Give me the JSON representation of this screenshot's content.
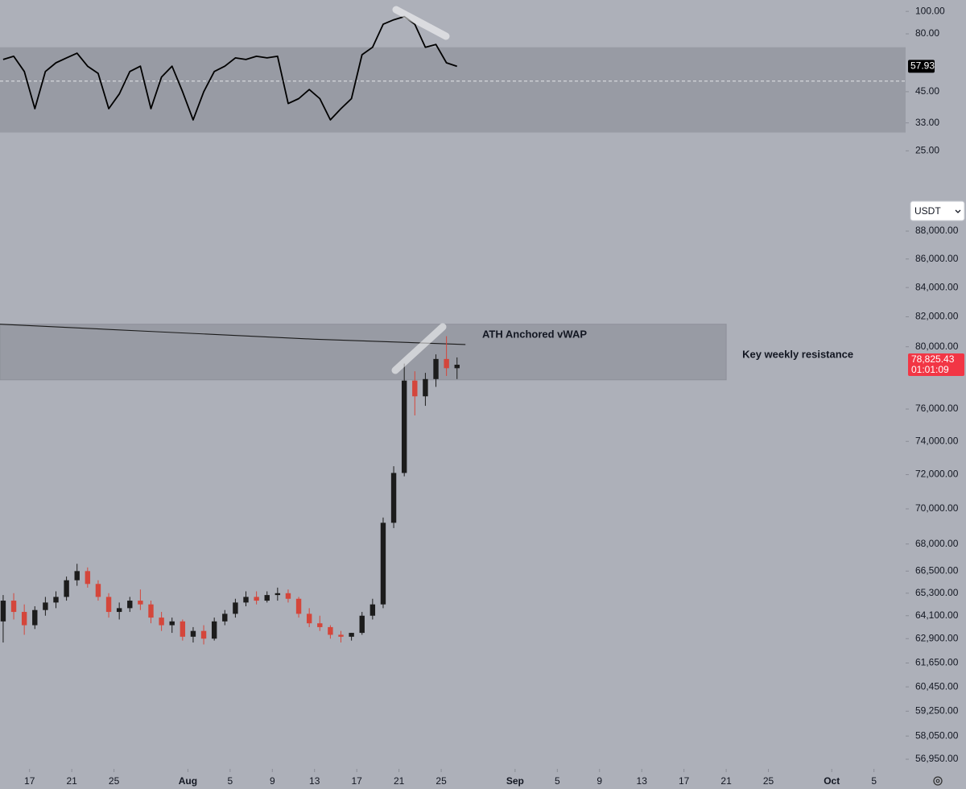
{
  "chart_data": [
    {
      "type": "line",
      "x": [
        195.5,
        196.5,
        197.5,
        198.5,
        199.5,
        200.5,
        201.5,
        202.5,
        203.5,
        204.5,
        205.5,
        206.5,
        207.5,
        208.5,
        209.5,
        210.5,
        211.5,
        212.5,
        213.5,
        214.5,
        215.5,
        216.5,
        217.5,
        218.5,
        219.5,
        220.5,
        221.5,
        222.5,
        223.5,
        224.5,
        225.5,
        226.5,
        227.5,
        228.5,
        229.5,
        230.5,
        231.5,
        232.5,
        233.5,
        234.5,
        235.5,
        236.5,
        237.5,
        238.5
      ],
      "series": [
        {
          "color": "#000000",
          "values": [
            62,
            64,
            55,
            38,
            55,
            60,
            63,
            66,
            58,
            54,
            38,
            44,
            55,
            58,
            38,
            52,
            58,
            45,
            34,
            45,
            55,
            58,
            63,
            62,
            64,
            63,
            64,
            40,
            42,
            46,
            42,
            34,
            38,
            42,
            65,
            70,
            88,
            92,
            95,
            88,
            70,
            72,
            60,
            57.93
          ]
        }
      ],
      "xlim": [
        195.2,
        281.0
      ],
      "ylim": [
        16.4,
        112
      ],
      "log_scale": true,
      "yticks": [
        {
          "value": 100,
          "label": "100.00"
        },
        {
          "value": 80,
          "label": "80.00"
        },
        {
          "value": 45,
          "label": "45.00"
        },
        {
          "value": 33,
          "label": "33.00"
        },
        {
          "value": 25,
          "label": "25.00"
        }
      ],
      "band": [
        30,
        70
      ],
      "band_color": "#989ba4",
      "midline": 50
    },
    {
      "type": "candlestick",
      "x": [
        195.5,
        196.5,
        197.5,
        198.5,
        199.5,
        200.5,
        201.5,
        202.5,
        203.5,
        204.5,
        205.5,
        206.5,
        207.5,
        208.5,
        209.5,
        210.5,
        211.5,
        212.5,
        213.5,
        214.5,
        215.5,
        216.5,
        217.5,
        218.5,
        219.5,
        220.5,
        221.5,
        222.5,
        223.5,
        224.5,
        225.5,
        226.5,
        227.5,
        228.5,
        229.5,
        230.5,
        231.5,
        232.5,
        233.5,
        234.5,
        235.5,
        236.5,
        237.5,
        238.5
      ],
      "open": [
        63800,
        64900,
        64300,
        63600,
        64400,
        64800,
        65100,
        66000,
        66500,
        65800,
        65100,
        64300,
        64500,
        64900,
        64700,
        64000,
        63600,
        63800,
        63000,
        63300,
        62900,
        63800,
        64200,
        64800,
        65100,
        64900,
        65200,
        65300,
        65000,
        64200,
        63700,
        63500,
        63100,
        63000,
        63200,
        64100,
        64700,
        69200,
        72100,
        77800,
        76800,
        77900,
        79200,
        78600
      ],
      "high": [
        65200,
        65300,
        64700,
        64600,
        65100,
        65400,
        66200,
        66900,
        66700,
        66000,
        65300,
        64800,
        65100,
        65500,
        64900,
        64300,
        64000,
        63900,
        63500,
        63600,
        64000,
        64400,
        65000,
        65400,
        65400,
        65400,
        65600,
        65500,
        65100,
        64500,
        64100,
        63600,
        63300,
        63200,
        64300,
        65000,
        69500,
        72500,
        78900,
        78400,
        78300,
        79500,
        80700,
        79300
      ],
      "low": [
        62700,
        63900,
        63100,
        63400,
        64100,
        64500,
        64900,
        65700,
        65600,
        64900,
        64000,
        63900,
        64300,
        64400,
        63700,
        63300,
        63200,
        62800,
        62700,
        62600,
        62800,
        63600,
        64000,
        64600,
        64700,
        64800,
        64900,
        64800,
        64000,
        63500,
        63300,
        62900,
        62700,
        62800,
        63100,
        63900,
        64500,
        68900,
        71900,
        75600,
        76200,
        77400,
        78100,
        77900
      ],
      "close": [
        64900,
        64300,
        63600,
        64400,
        64800,
        65100,
        66000,
        66500,
        65800,
        65100,
        64300,
        64500,
        64900,
        64700,
        64000,
        63600,
        63800,
        63000,
        63300,
        62900,
        63800,
        64200,
        64800,
        65100,
        64900,
        65200,
        65300,
        65000,
        64200,
        63700,
        63500,
        63100,
        63000,
        63200,
        64100,
        64700,
        69200,
        72100,
        77800,
        76800,
        77900,
        79200,
        78600,
        78825.43
      ],
      "up_color": "#1c1c1c",
      "down_color": "#d4463b",
      "xlim": [
        195.2,
        281.0
      ],
      "ylim": [
        56500,
        89000
      ],
      "log_scale": true,
      "yticks": [
        {
          "value": 88000,
          "label": "88,000.00"
        },
        {
          "value": 86000,
          "label": "86,000.00"
        },
        {
          "value": 84000,
          "label": "84,000.00"
        },
        {
          "value": 82000,
          "label": "82,000.00"
        },
        {
          "value": 80000,
          "label": "80,000.00"
        },
        {
          "value": 76000,
          "label": "76,000.00"
        },
        {
          "value": 74000,
          "label": "74,000.00"
        },
        {
          "value": 72000,
          "label": "72,000.00"
        },
        {
          "value": 70000,
          "label": "70,000.00"
        },
        {
          "value": 68000,
          "label": "68,000.00"
        },
        {
          "value": 66500,
          "label": "66,500.00"
        },
        {
          "value": 65300,
          "label": "65,300.00"
        },
        {
          "value": 64100,
          "label": "64,100.00"
        },
        {
          "value": 62900,
          "label": "62,900.00"
        },
        {
          "value": 61650,
          "label": "61,650.00"
        },
        {
          "value": 60450,
          "label": "60,450.00"
        },
        {
          "value": 59250,
          "label": "59,250.00"
        },
        {
          "value": 58050,
          "label": "58,050.00"
        },
        {
          "value": 56950,
          "label": "56,950.00"
        }
      ],
      "xticks": [
        {
          "value": 198,
          "label": "17"
        },
        {
          "value": 202,
          "label": "21"
        },
        {
          "value": 206,
          "label": "25"
        },
        {
          "value": 213,
          "label": "Aug"
        },
        {
          "value": 217,
          "label": "5"
        },
        {
          "value": 221,
          "label": "9"
        },
        {
          "value": 225,
          "label": "13"
        },
        {
          "value": 229,
          "label": "17"
        },
        {
          "value": 233,
          "label": "21"
        },
        {
          "value": 237,
          "label": "25"
        },
        {
          "value": 244,
          "label": "Sep"
        },
        {
          "value": 248,
          "label": "5"
        },
        {
          "value": 252,
          "label": "9"
        },
        {
          "value": 256,
          "label": "13"
        },
        {
          "value": 260,
          "label": "17"
        },
        {
          "value": 264,
          "label": "21"
        },
        {
          "value": 268,
          "label": "25"
        },
        {
          "value": 274,
          "label": "Oct"
        },
        {
          "value": 278,
          "label": "5"
        }
      ],
      "vwap": {
        "name": "ATH Anchored vWAP",
        "color": "#1a1a1a",
        "x": [
          195.2,
          210,
          225,
          239.3
        ],
        "values": [
          81500,
          81000,
          80500,
          80150
        ]
      },
      "zone": {
        "label": "Key weekly resistance",
        "x": [
          195.2,
          264
        ],
        "low": 77850,
        "high": 81500,
        "color": "#989ba4"
      },
      "last_price": {
        "value": 78825.43,
        "label": "78,825.43"
      },
      "countdown": "01:01:09"
    }
  ],
  "ui": {
    "currency_select": "USDT"
  }
}
